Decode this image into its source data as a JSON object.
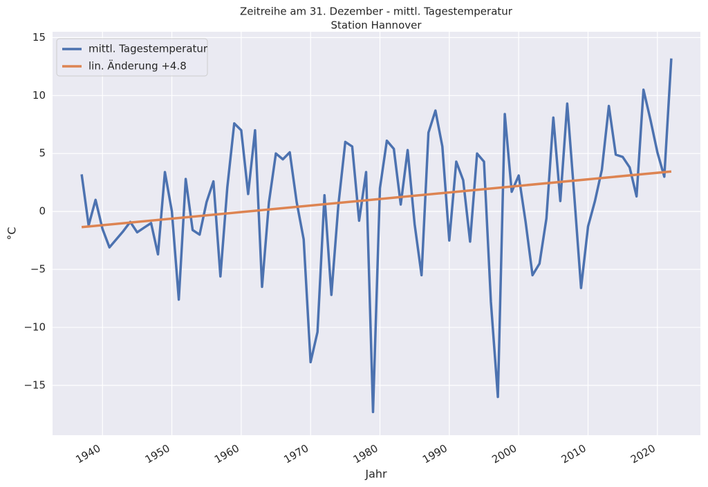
{
  "chart_data": {
    "type": "line",
    "title": "Zeitreihe am 31. Dezember - mittl. Tagestemperatur",
    "subtitle": "Station Hannover",
    "x_label": "Jahr",
    "y_label": "°C",
    "x": [
      1937,
      1938,
      1939,
      1940,
      1941,
      1942,
      1943,
      1944,
      1945,
      1946,
      1947,
      1948,
      1949,
      1950,
      1951,
      1952,
      1953,
      1954,
      1955,
      1956,
      1957,
      1958,
      1959,
      1960,
      1961,
      1962,
      1963,
      1964,
      1965,
      1966,
      1967,
      1968,
      1969,
      1970,
      1971,
      1972,
      1973,
      1974,
      1975,
      1976,
      1977,
      1978,
      1979,
      1980,
      1981,
      1982,
      1983,
      1984,
      1985,
      1986,
      1987,
      1988,
      1989,
      1990,
      1991,
      1992,
      1993,
      1994,
      1995,
      1996,
      1997,
      1998,
      1999,
      2000,
      2001,
      2002,
      2003,
      2004,
      2005,
      2006,
      2007,
      2008,
      2009,
      2010,
      2011,
      2012,
      2013,
      2014,
      2015,
      2016,
      2017,
      2018,
      2019,
      2020,
      2021,
      2022
    ],
    "series": [
      {
        "name": "mittl. Tagestemperatur",
        "color": "#4c72b0",
        "values": [
          3.2,
          -1.2,
          1.0,
          -1.5,
          -3.1,
          -2.4,
          -1.7,
          -0.9,
          -1.8,
          -1.4,
          -1.0,
          -3.7,
          3.4,
          0.0,
          -7.6,
          2.8,
          -1.6,
          -2.0,
          0.8,
          2.6,
          -5.6,
          2.1,
          7.6,
          7.0,
          1.5,
          7.0,
          -6.5,
          0.8,
          5.0,
          4.5,
          5.1,
          0.8,
          -2.4,
          -13.0,
          -10.4,
          1.4,
          -7.2,
          0.5,
          6.0,
          5.6,
          -0.8,
          3.4,
          -17.3,
          2.0,
          6.1,
          5.4,
          0.6,
          5.3,
          -1.1,
          -5.5,
          6.8,
          8.7,
          5.6,
          -2.5,
          4.3,
          2.7,
          -2.6,
          5.0,
          4.3,
          -7.8,
          -16.0,
          8.4,
          1.7,
          3.1,
          -0.9,
          -5.5,
          -4.5,
          -0.6,
          8.1,
          0.9,
          9.3,
          1.5,
          -6.6,
          -1.3,
          0.9,
          3.6,
          9.1,
          4.9,
          4.7,
          3.8,
          1.3,
          10.5,
          7.9,
          5.1,
          3.0,
          13.2
        ]
      },
      {
        "name": "lin. Änderung +4.8",
        "color": "#dd8452",
        "x": [
          1937,
          2022
        ],
        "values": [
          -1.35,
          3.45
        ]
      }
    ],
    "xlim": [
      1932.8,
      2026.2
    ],
    "xticks": [
      1940,
      1950,
      1960,
      1970,
      1980,
      1990,
      2000,
      2010,
      2020
    ],
    "ylim": [
      -19.3,
      15.5
    ],
    "yticks": [
      15,
      10,
      5,
      0,
      {
        "value": -5,
        "label": "−5"
      },
      {
        "value": -10,
        "label": "−10"
      },
      {
        "value": -15,
        "label": "−15"
      }
    ],
    "grid": true,
    "legend": "upper left"
  }
}
